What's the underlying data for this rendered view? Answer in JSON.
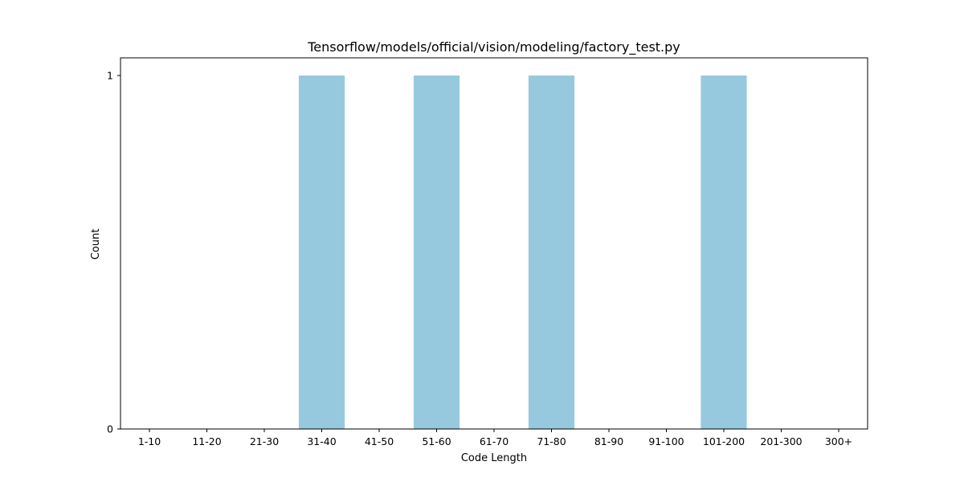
{
  "chart_data": {
    "type": "bar",
    "title": "Tensorflow/models/official/vision/modeling/factory_test.py",
    "xlabel": "Code Length",
    "ylabel": "Count",
    "categories": [
      "1-10",
      "11-20",
      "21-30",
      "31-40",
      "41-50",
      "51-60",
      "61-70",
      "71-80",
      "81-90",
      "91-100",
      "101-200",
      "201-300",
      "300+"
    ],
    "values": [
      0,
      0,
      0,
      1,
      0,
      1,
      0,
      1,
      0,
      0,
      1,
      0,
      0
    ],
    "yticks": [
      0,
      1
    ],
    "ylim": [
      0,
      1
    ],
    "grid": false,
    "legend": "none",
    "bar_color": "#96c9de"
  }
}
